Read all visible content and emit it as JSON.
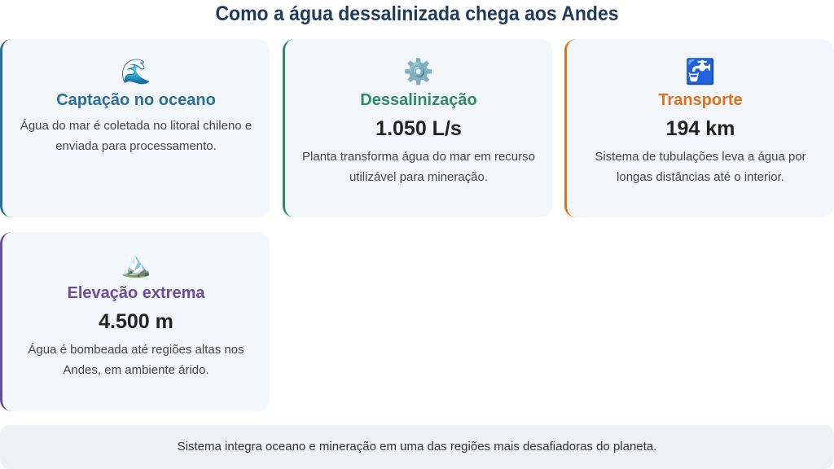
{
  "title": "Como a água dessalinizada chega aos Andes",
  "cards": [
    {
      "icon": "🌊",
      "icon_name": "water-wave-icon",
      "title": "Captação no oceano",
      "value": "",
      "desc": "Água do mar é coletada no litoral chileno e enviada para processamento.",
      "color": "#2a6f97"
    },
    {
      "icon": "⚙️",
      "icon_name": "gear-icon",
      "title": "Dessalinização",
      "value": "1.050 L/s",
      "desc": "Planta transforma água do mar em recurso utilizável para mineração.",
      "color": "#2e8b6a"
    },
    {
      "icon": "🚰",
      "icon_name": "potable-water-icon",
      "title": "Transporte",
      "value": "194 km",
      "desc": "Sistema de tubulações leva a água por longas distâncias até o interior.",
      "color": "#e0701e"
    },
    {
      "icon": "🏔️",
      "icon_name": "mountain-icon",
      "title": "Elevação extrema",
      "value": "4.500 m",
      "desc": "Água é bombeada até regiões altas nos Andes, em ambiente árido.",
      "color": "#6b4c9a"
    }
  ],
  "footer": "Sistema integra oceano e mineração em uma das regiões mais desafiadoras do planeta."
}
